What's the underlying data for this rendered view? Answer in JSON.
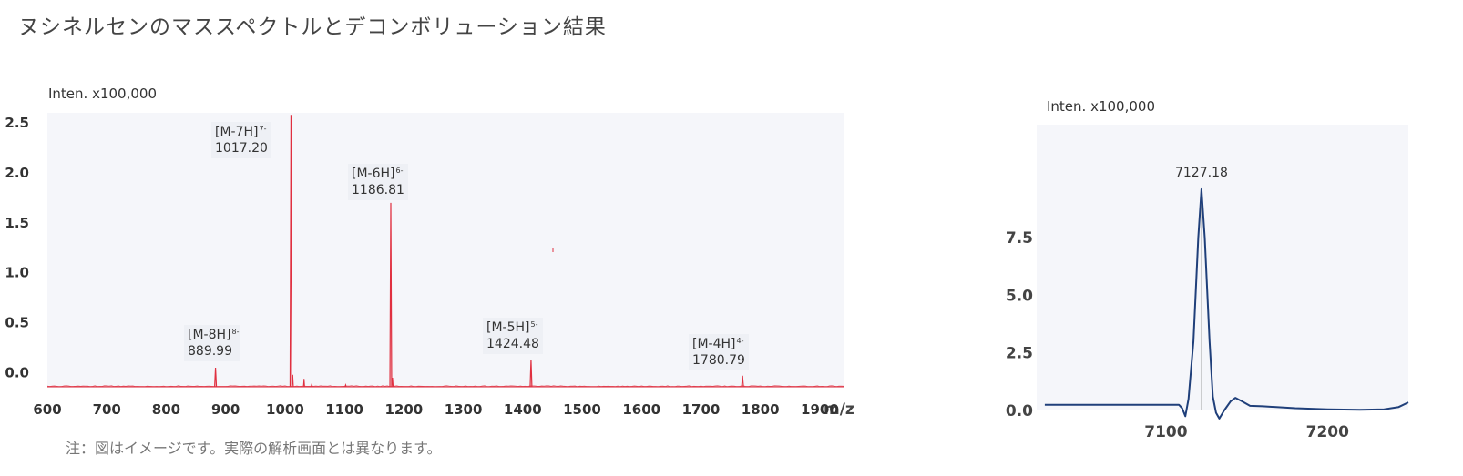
{
  "title": "ヌシネルセンのマススペクトルとデコンボリューション結果",
  "footnote": "注：図はイメージです。実際の解析画面とは異なります。",
  "colors": {
    "spectrum": "#e03040",
    "deconv": "#1f3f7a",
    "plot_bg": "#f5f6fa",
    "label_bg": "#eef0f5"
  },
  "chart_data": [
    {
      "type": "line",
      "ylabel": "Inten. x100,000",
      "xlabel": "m/z",
      "xlim": [
        600,
        1940
      ],
      "ylim": [
        -0.15,
        2.6
      ],
      "xticks": [
        600,
        700,
        800,
        900,
        1000,
        1100,
        1200,
        1300,
        1400,
        1500,
        1600,
        1700,
        1800,
        1900
      ],
      "yticks": [
        {
          "v": 0.0,
          "label": "0.0"
        },
        {
          "v": 0.5,
          "label": "0.5"
        },
        {
          "v": 1.0,
          "label": "1.0"
        },
        {
          "v": 1.5,
          "label": "1.5"
        },
        {
          "v": 2.0,
          "label": "2.0"
        },
        {
          "v": 2.5,
          "label": "2.5"
        }
      ],
      "baseline": -0.14,
      "peaks": [
        {
          "x": 883,
          "y": 0.05,
          "ion": "[M-8H]",
          "charge": "8-",
          "mz": "889.99"
        },
        {
          "x": 1010,
          "y": 2.58,
          "ion": "[M-7H]",
          "charge": "7-",
          "mz": "1017.20"
        },
        {
          "x": 1178,
          "y": 1.7,
          "ion": "[M-6H]",
          "charge": "6-",
          "mz": "1186.81"
        },
        {
          "x": 1414,
          "y": 0.13,
          "ion": "[M-5H]",
          "charge": "5-",
          "mz": "1424.48"
        },
        {
          "x": 1770,
          "y": -0.03,
          "ion": "[M-4H]",
          "charge": "4-",
          "mz": "1780.79"
        }
      ],
      "minor_peaks": [
        {
          "x": 1013,
          "y": -0.02
        },
        {
          "x": 1032,
          "y": -0.06
        },
        {
          "x": 1181,
          "y": -0.05
        },
        {
          "x": 1045,
          "y": -0.11
        },
        {
          "x": 1102,
          "y": -0.12
        }
      ]
    },
    {
      "type": "line",
      "ylabel": "Inten. x100,000",
      "xlim": [
        7020,
        7250
      ],
      "ylim": [
        0,
        12.4
      ],
      "xticks": [
        7100,
        7200
      ],
      "yticks": [
        {
          "v": 0.0,
          "label": "0.0"
        },
        {
          "v": 2.5,
          "label": "2.5"
        },
        {
          "v": 5.0,
          "label": "5.0"
        },
        {
          "v": 7.5,
          "label": "7.5"
        }
      ],
      "peak_label": "7127.18",
      "points": [
        [
          7025,
          0.25
        ],
        [
          7060,
          0.25
        ],
        [
          7095,
          0.25
        ],
        [
          7100,
          0.25
        ],
        [
          7105,
          0.25
        ],
        [
          7108,
          0.25
        ],
        [
          7110,
          0.1
        ],
        [
          7112,
          -0.25
        ],
        [
          7114,
          0.5
        ],
        [
          7117,
          3.0
        ],
        [
          7120,
          7.5
        ],
        [
          7122,
          9.6
        ],
        [
          7124,
          7.5
        ],
        [
          7127,
          3.0
        ],
        [
          7129,
          0.6
        ],
        [
          7131,
          -0.1
        ],
        [
          7133,
          -0.35
        ],
        [
          7136,
          0.0
        ],
        [
          7140,
          0.4
        ],
        [
          7143,
          0.55
        ],
        [
          7147,
          0.4
        ],
        [
          7152,
          0.2
        ],
        [
          7160,
          0.18
        ],
        [
          7180,
          0.1
        ],
        [
          7200,
          0.05
        ],
        [
          7220,
          0.03
        ],
        [
          7235,
          0.05
        ],
        [
          7244,
          0.15
        ],
        [
          7250,
          0.35
        ]
      ]
    }
  ]
}
